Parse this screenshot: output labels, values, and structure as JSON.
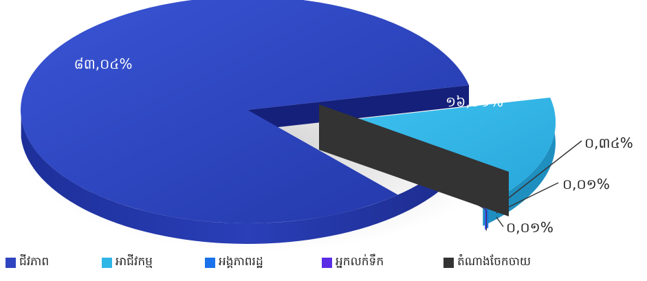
{
  "chart_data": {
    "type": "pie",
    "title": "",
    "categories": [
      "ជីវភាព",
      "អាជីវកម្ម",
      "អង្គភាពរដ្ឋ",
      "អ្នកលក់ទឹក",
      "តំណាងចែកចាយ"
    ],
    "values": [
      83.04,
      16.61,
      0.34,
      0.01,
      0.01
    ],
    "labels": [
      "៨៣,០៤%",
      "១៦,៦១%",
      "០,៣៤%",
      "០,០១%",
      "០,០១%"
    ],
    "colors": [
      "#2f44c0",
      "#2fb6e6",
      "#1a72ea",
      "#5b2ce6",
      "#333333"
    ],
    "legend_position": "bottom"
  }
}
